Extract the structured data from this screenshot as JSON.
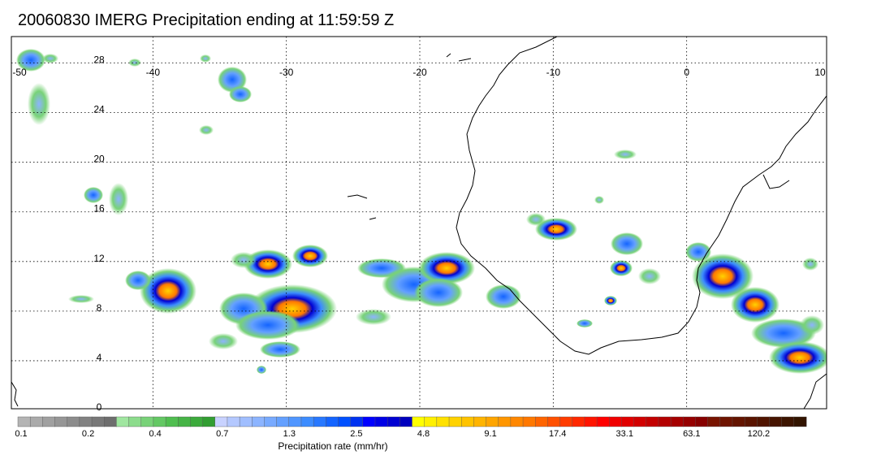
{
  "title": "20060830 IMERG Precipitation ending at 11:59:59 Z",
  "map": {
    "lon_range": [
      -50,
      10
    ],
    "lat_range": [
      0,
      30
    ],
    "lon_ticks": [
      -50,
      -40,
      -30,
      -20,
      -10,
      0,
      10
    ],
    "lat_ticks": [
      0,
      4,
      8,
      12,
      16,
      20,
      24,
      28
    ],
    "lon_tick_labels": [
      "-50",
      "-40",
      "-30",
      "-20",
      "-10",
      "0",
      "10"
    ],
    "lat_tick_labels": [
      "0",
      "4",
      "8",
      "12",
      "16",
      "20",
      "24",
      "28"
    ],
    "gridlines": "dotted"
  },
  "colorbar": {
    "title": "Precipitation rate (mm/hr)",
    "labels": [
      "0.1",
      "0.2",
      "0.4",
      "0.7",
      "1.3",
      "2.5",
      "4.8",
      "9.1",
      "17.4",
      "33.1",
      "63.1",
      "120.2"
    ],
    "colors": [
      "#b4b4b4",
      "#aaaaaa",
      "#a0a0a0",
      "#969696",
      "#8c8c8c",
      "#828282",
      "#787878",
      "#6e6e6e",
      "#a0e6a0",
      "#8cdc8c",
      "#78d278",
      "#64c864",
      "#50be50",
      "#46b446",
      "#3caa3c",
      "#329e32",
      "#c8d2ff",
      "#b4c8ff",
      "#a0beff",
      "#8cb4ff",
      "#78aaff",
      "#64a0ff",
      "#5096ff",
      "#3c8cff",
      "#2878ff",
      "#1464ff",
      "#0050ff",
      "#0032f0",
      "#0000ff",
      "#0000e6",
      "#0000d2",
      "#0000be",
      "#ffff00",
      "#fff000",
      "#ffe100",
      "#ffd200",
      "#ffc300",
      "#ffb400",
      "#ffa500",
      "#ff9600",
      "#ff8700",
      "#ff7800",
      "#ff6400",
      "#ff5000",
      "#ff3c00",
      "#ff2800",
      "#ff1400",
      "#ff0000",
      "#f00000",
      "#e10000",
      "#d20000",
      "#c30000",
      "#b40000",
      "#a50000",
      "#960000",
      "#870000",
      "#781400",
      "#6e1400",
      "#641400",
      "#5a1400",
      "#501400",
      "#461400",
      "#3c1400",
      "#321400"
    ]
  },
  "colors": {
    "land_outline": "#000000",
    "grid": "#000000"
  }
}
